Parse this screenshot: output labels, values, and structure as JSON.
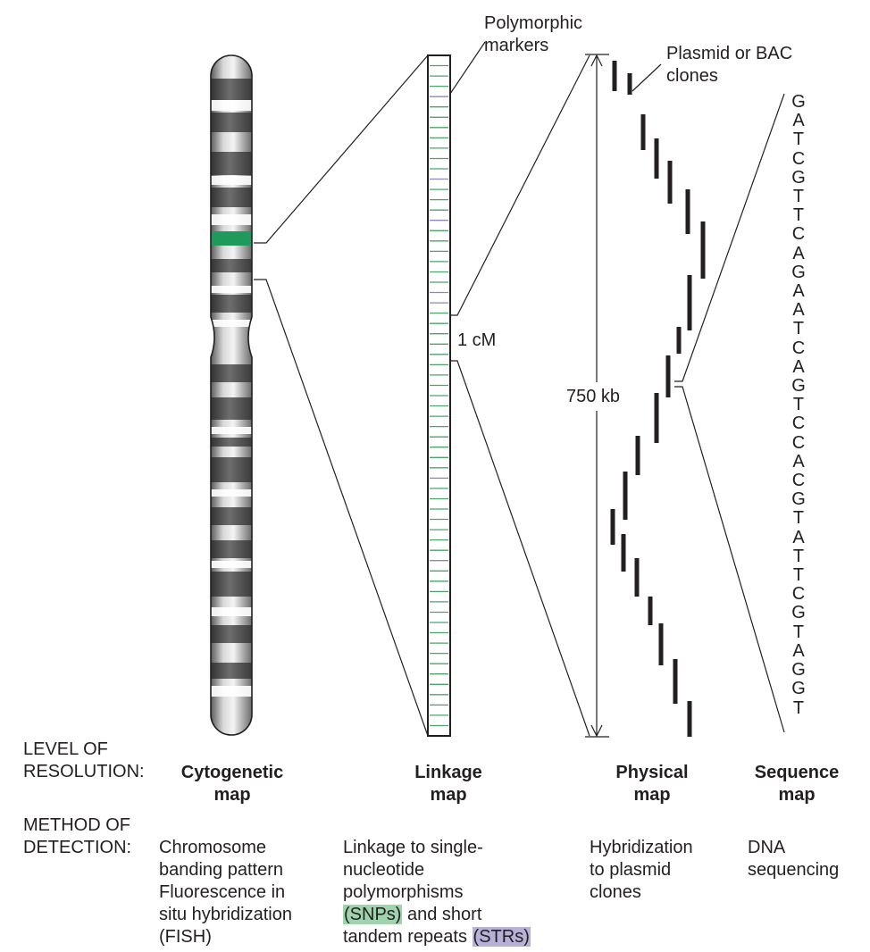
{
  "labels": {
    "polymorphic_markers": [
      "Polymorphic",
      "markers"
    ],
    "clones": [
      "Plasmid or BAC",
      "clones"
    ],
    "cm": "1 cM",
    "kb": "750 kb"
  },
  "sequence": [
    "G",
    "A",
    "T",
    "C",
    "G",
    "T",
    "T",
    "C",
    "A",
    "G",
    "A",
    "A",
    "T",
    "C",
    "A",
    "G",
    "T",
    "C",
    "C",
    "A",
    "C",
    "G",
    "T",
    "A",
    "T",
    "T",
    "C",
    "G",
    "T",
    "A",
    "G",
    "G",
    "T"
  ],
  "level_of_resolution": {
    "heading": [
      "LEVEL OF",
      "RESOLUTION:"
    ],
    "maps": [
      {
        "line1": "Cytogenetic",
        "line2": "map"
      },
      {
        "line1": "Linkage",
        "line2": "map"
      },
      {
        "line1": "Physical",
        "line2": "map"
      },
      {
        "line1": "Sequence",
        "line2": "map"
      }
    ]
  },
  "method_of_detection": {
    "heading": [
      "METHOD OF",
      "DETECTION:"
    ],
    "cytogenetic": [
      "Chromosome",
      "banding pattern",
      "Fluorescence in",
      "situ hybridization",
      "(FISH)"
    ],
    "linkage": {
      "line1": "Linkage to single-",
      "line2": "nucleotide",
      "line3": "polymorphisms",
      "snp": "(SNPs)",
      "snp_rest": " and short",
      "str_pre": "tandem repeats ",
      "str": "(STRs)"
    },
    "physical": [
      "Hybridization",
      "to plasmid",
      "clones"
    ],
    "sequence": [
      "DNA",
      "sequencing"
    ]
  },
  "colors": {
    "snp_green": "#4aa56b",
    "snp_highlight": "#9fd3ae",
    "str_purple": "#8d86b8",
    "str_highlight": "#b7b1d9",
    "fish_band": "#1f9a5a",
    "line": "#231f20"
  }
}
